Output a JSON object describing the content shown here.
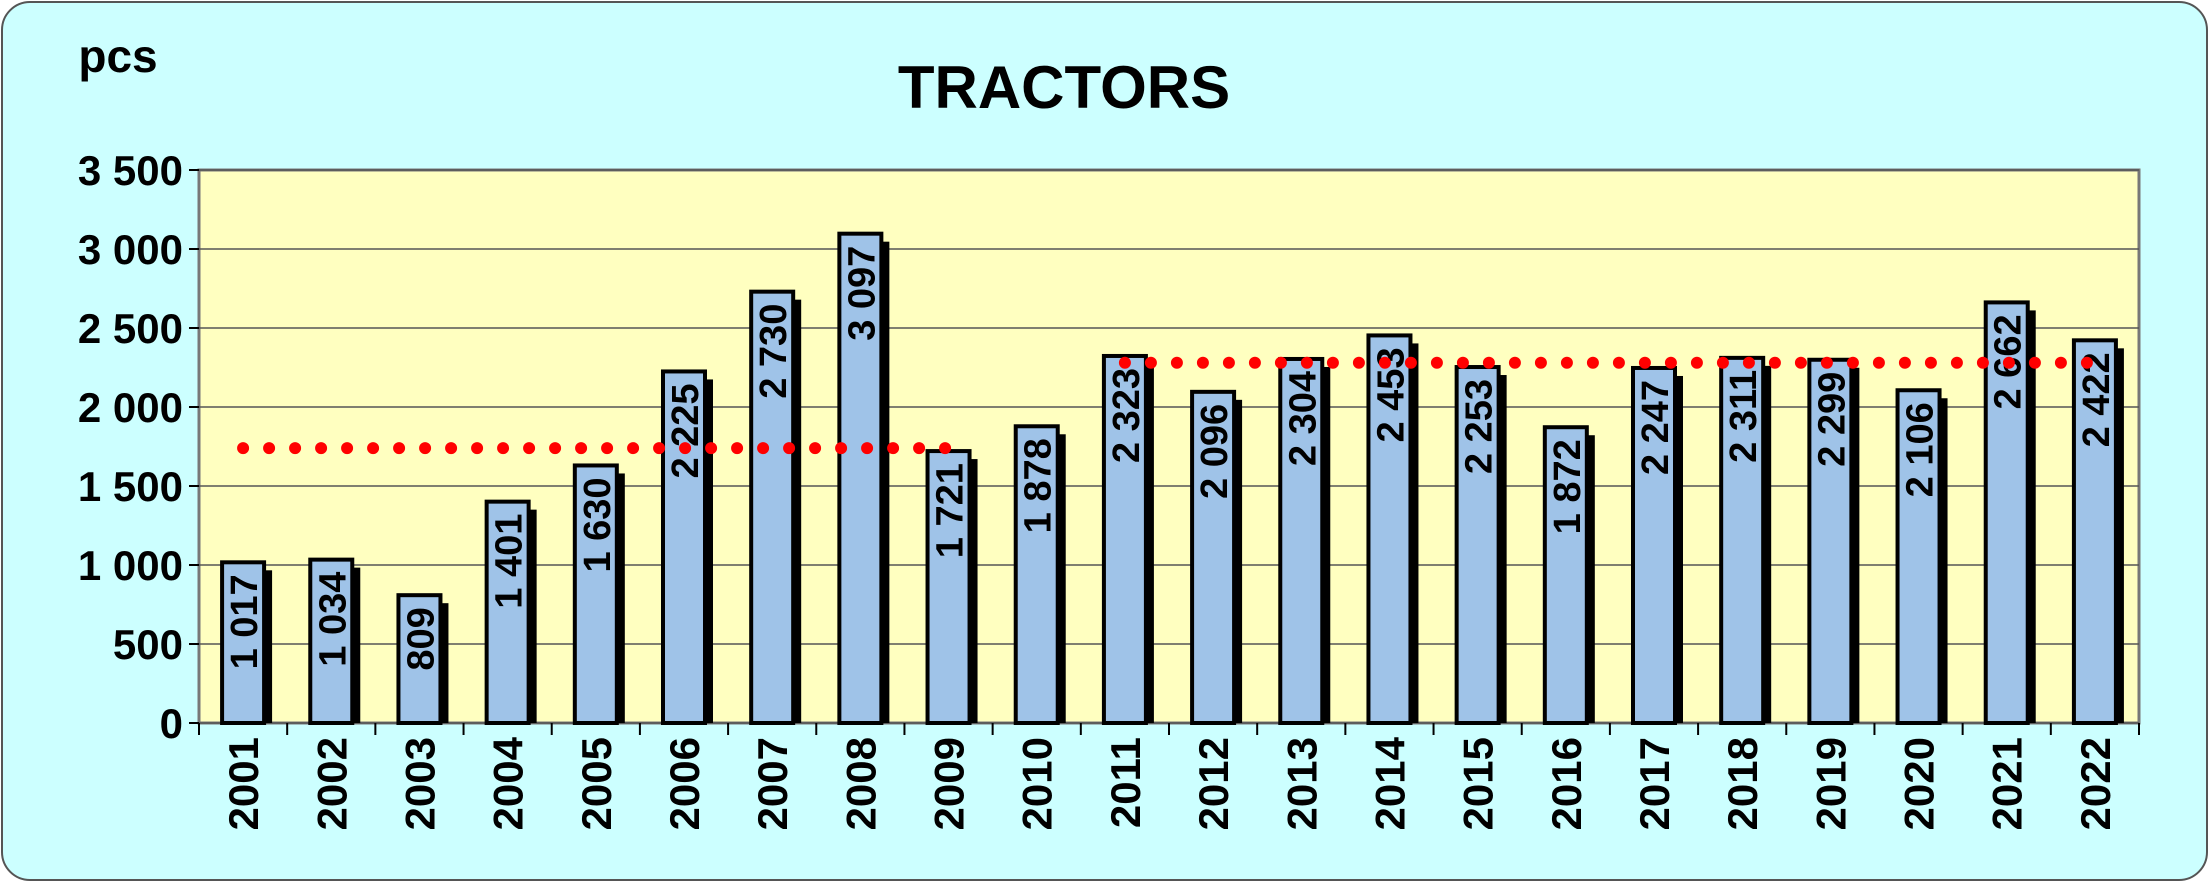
{
  "chart_data": {
    "type": "bar",
    "title": "TRACTORS",
    "y_label": "pcs",
    "categories": [
      "2001",
      "2002",
      "2003",
      "2004",
      "2005",
      "2006",
      "2007",
      "2008",
      "2009",
      "2010",
      "2011",
      "2012",
      "2013",
      "2014",
      "2015",
      "2016",
      "2017",
      "2018",
      "2019",
      "2020",
      "2021",
      "2022"
    ],
    "values": [
      1017,
      1034,
      809,
      1401,
      1630,
      2225,
      2730,
      3097,
      1721,
      1878,
      2323,
      2096,
      2304,
      2453,
      2253,
      1872,
      2247,
      2311,
      2299,
      2106,
      2662,
      2422
    ],
    "value_labels": [
      "1 017",
      "1 034",
      "809",
      "1 401",
      "1 630",
      "2 225",
      "2 730",
      "3 097",
      "1 721",
      "1 878",
      "2 323",
      "2 096",
      "2 304",
      "2 453",
      "2 253",
      "1 872",
      "2 247",
      "2 311",
      "2 299",
      "2 106",
      "2 662",
      "2 422"
    ],
    "color": "#9fc3e8",
    "averages": [
      {
        "color": "#ff0000",
        "values": [
          1740,
          1740,
          1740,
          1740,
          1740,
          1740,
          1740,
          1740,
          1740,
          null,
          null,
          null,
          null,
          null,
          null,
          null,
          null,
          null,
          null,
          null,
          null,
          null
        ]
      },
      {
        "color": "#ff0000",
        "values": [
          null,
          null,
          null,
          null,
          null,
          null,
          null,
          null,
          null,
          null,
          2280,
          2280,
          2280,
          2280,
          2280,
          2280,
          2280,
          2280,
          2280,
          2280,
          2280,
          2280
        ]
      }
    ],
    "ylim": [
      0,
      3500
    ],
    "yticks": [
      0,
      500,
      {
        "value": 1000,
        "label": "1 000"
      },
      {
        "value": 1500,
        "label": "1 500"
      },
      {
        "value": 2000,
        "label": "2 000"
      },
      {
        "value": 2500,
        "label": "2 500"
      },
      {
        "value": 3000,
        "label": "3 000"
      },
      {
        "value": 3500,
        "label": "3 500"
      }
    ],
    "grid": true
  }
}
